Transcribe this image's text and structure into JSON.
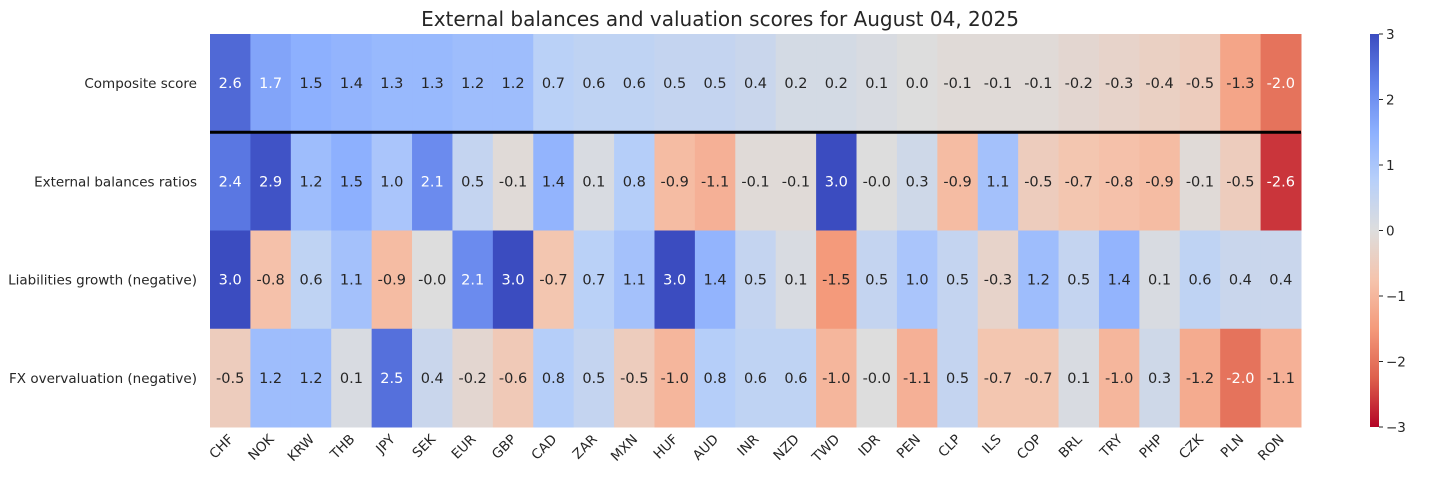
{
  "chart_data": {
    "type": "heatmap",
    "title": "External balances and valuation scores for August 04, 2025",
    "colormap": "coolwarm (reversed: positive blue, negative red)",
    "vmin": -3,
    "vmax": 3,
    "colorbar_ticks": [
      3,
      2,
      1,
      0,
      -1,
      -2,
      -3
    ],
    "columns": [
      "CHF",
      "NOK",
      "KRW",
      "THB",
      "JPY",
      "SEK",
      "EUR",
      "GBP",
      "CAD",
      "ZAR",
      "MXN",
      "HUF",
      "AUD",
      "INR",
      "NZD",
      "TWD",
      "IDR",
      "PEN",
      "CLP",
      "ILS",
      "COP",
      "BRL",
      "TRY",
      "PHP",
      "CZK",
      "PLN",
      "RON"
    ],
    "rows": [
      {
        "label": "Composite score",
        "values": [
          2.6,
          1.7,
          1.5,
          1.4,
          1.3,
          1.3,
          1.2,
          1.2,
          0.7,
          0.6,
          0.6,
          0.5,
          0.5,
          0.4,
          0.2,
          0.2,
          0.1,
          0.0,
          -0.1,
          -0.1,
          -0.1,
          -0.2,
          -0.3,
          -0.4,
          -0.5,
          -1.3,
          -2.0
        ]
      },
      {
        "label": "External balances ratios",
        "values": [
          2.4,
          2.9,
          1.2,
          1.5,
          1.0,
          2.1,
          0.5,
          -0.1,
          1.4,
          0.1,
          0.8,
          -0.9,
          -1.1,
          -0.1,
          -0.1,
          3.0,
          -0.0,
          0.3,
          -0.9,
          1.1,
          -0.5,
          -0.7,
          -0.8,
          -0.9,
          -0.1,
          -0.5,
          -2.6
        ]
      },
      {
        "label": "Liabilities growth (negative)",
        "values": [
          3.0,
          -0.8,
          0.6,
          1.1,
          -0.9,
          -0.0,
          2.1,
          3.0,
          -0.7,
          0.7,
          1.1,
          3.0,
          1.4,
          0.5,
          0.1,
          -1.5,
          0.5,
          1.0,
          0.5,
          -0.3,
          1.2,
          0.5,
          1.4,
          0.1,
          0.6,
          0.4,
          0.4
        ]
      },
      {
        "label": "FX overvaluation (negative)",
        "values": [
          -0.5,
          1.2,
          1.2,
          0.1,
          2.5,
          0.4,
          -0.2,
          -0.6,
          0.8,
          0.5,
          -0.5,
          -1.0,
          0.8,
          0.6,
          0.6,
          -1.0,
          -0.0,
          -1.1,
          0.5,
          -0.7,
          -0.7,
          0.1,
          -1.0,
          0.3,
          -1.2,
          -2.0,
          -1.1
        ]
      }
    ],
    "separator_after_row": 0
  }
}
